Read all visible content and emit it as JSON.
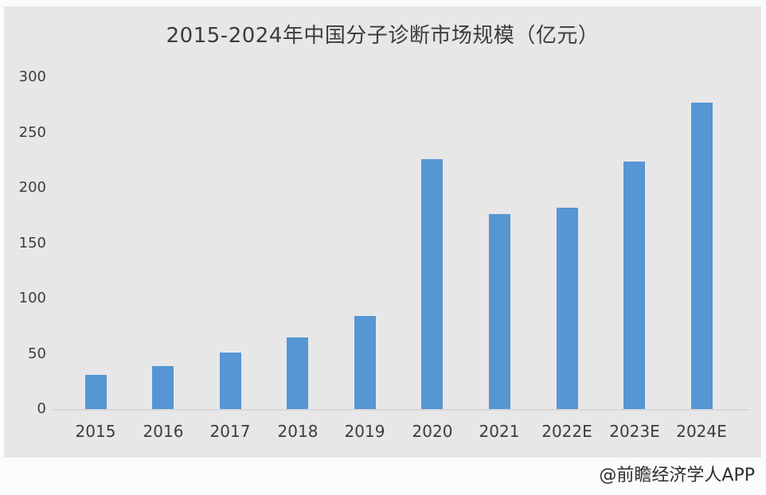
{
  "chart_data": {
    "type": "bar",
    "title": "2015-2024年中国分子诊断市场规模（亿元）",
    "categories": [
      "2015",
      "2016",
      "2017",
      "2018",
      "2019",
      "2020",
      "2021",
      "2022E",
      "2023E",
      "2024E"
    ],
    "values": [
      31,
      39,
      51,
      65,
      84,
      226,
      176,
      182,
      224,
      277
    ],
    "unit": "亿元",
    "ylim": [
      0,
      300
    ],
    "yticks": [
      0,
      50,
      100,
      150,
      200,
      250,
      300
    ],
    "grid": false,
    "legend_position": "none",
    "bar_color": "#5596d3",
    "plot_bg": "#e8e7e8",
    "axis_line_color": "#d9d7d8",
    "text_color": "#3d3d3d"
  },
  "watermark": {
    "text": "@前瞻经济学人APP"
  }
}
